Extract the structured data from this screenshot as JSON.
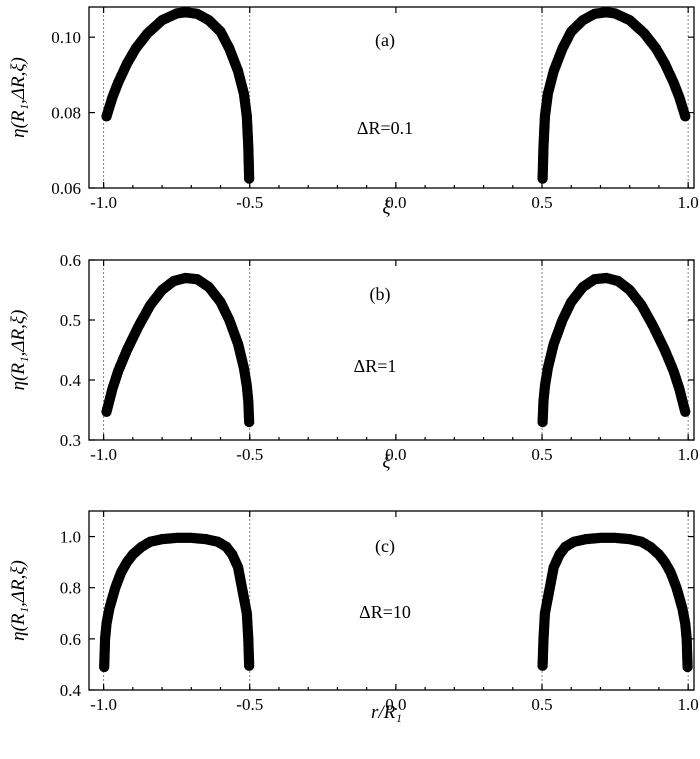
{
  "chart_data": [
    {
      "type": "scatter",
      "panel_label": "(a)",
      "annotation": "ΔR=0.1",
      "ylabel": "η(R₁,ΔR,ξ)",
      "xlabel": "ξ",
      "xlim": [
        -1.05,
        1.02
      ],
      "ylim": [
        0.06,
        0.108
      ],
      "xticks": [
        -1.0,
        -0.5,
        0.0,
        0.5,
        1.0
      ],
      "xtick_labels": [
        "-1.0",
        "-0.5",
        "0.0",
        "0.5",
        "1.0"
      ],
      "yticks": [
        0.06,
        0.08,
        0.1
      ],
      "ytick_labels": [
        "0.06",
        "0.08",
        "0.10"
      ],
      "reference_lines_x": [
        -1.0,
        -0.5,
        0.5,
        1.0
      ],
      "series": [
        {
          "x": [
            -0.99,
            -0.97,
            -0.95,
            -0.92,
            -0.89,
            -0.85,
            -0.8,
            -0.75,
            -0.72,
            -0.68,
            -0.64,
            -0.6,
            -0.57,
            -0.54,
            -0.52,
            -0.51,
            -0.505,
            -0.502
          ],
          "y": [
            0.079,
            0.084,
            0.088,
            0.093,
            0.097,
            0.101,
            0.1045,
            0.1063,
            0.1066,
            0.1062,
            0.1045,
            0.1015,
            0.097,
            0.091,
            0.085,
            0.079,
            0.071,
            0.0625
          ]
        },
        {
          "x": [
            0.502,
            0.505,
            0.51,
            0.52,
            0.54,
            0.57,
            0.6,
            0.64,
            0.68,
            0.72,
            0.75,
            0.8,
            0.85,
            0.89,
            0.92,
            0.95,
            0.97,
            0.99
          ],
          "y": [
            0.0625,
            0.071,
            0.079,
            0.085,
            0.091,
            0.097,
            0.1015,
            0.1045,
            0.1062,
            0.1066,
            0.1063,
            0.1045,
            0.101,
            0.097,
            0.093,
            0.088,
            0.084,
            0.079
          ]
        }
      ]
    },
    {
      "type": "scatter",
      "panel_label": "(b)",
      "annotation": "ΔR=1",
      "ylabel": "η(R₁,ΔR,ξ)",
      "xlabel": "ξ",
      "xlim": [
        -1.05,
        1.02
      ],
      "ylim": [
        0.3,
        0.6
      ],
      "xticks": [
        -1.0,
        -0.5,
        0.0,
        0.5,
        1.0
      ],
      "xtick_labels": [
        "-1.0",
        "-0.5",
        "0.0",
        "0.5",
        "1.0"
      ],
      "yticks": [
        0.3,
        0.4,
        0.5,
        0.6
      ],
      "ytick_labels": [
        "0.3",
        "0.4",
        "0.5",
        "0.6"
      ],
      "reference_lines_x": [
        -1.0,
        -0.5,
        0.5,
        1.0
      ],
      "series": [
        {
          "x": [
            -0.99,
            -0.97,
            -0.95,
            -0.92,
            -0.88,
            -0.84,
            -0.8,
            -0.76,
            -0.72,
            -0.68,
            -0.64,
            -0.6,
            -0.57,
            -0.54,
            -0.52,
            -0.51,
            -0.505,
            -0.502
          ],
          "y": [
            0.347,
            0.385,
            0.415,
            0.45,
            0.49,
            0.525,
            0.55,
            0.565,
            0.57,
            0.568,
            0.555,
            0.53,
            0.5,
            0.46,
            0.42,
            0.39,
            0.365,
            0.33
          ]
        },
        {
          "x": [
            0.502,
            0.505,
            0.51,
            0.52,
            0.54,
            0.57,
            0.6,
            0.64,
            0.68,
            0.72,
            0.76,
            0.8,
            0.84,
            0.88,
            0.92,
            0.95,
            0.97,
            0.99
          ],
          "y": [
            0.33,
            0.365,
            0.39,
            0.42,
            0.46,
            0.5,
            0.53,
            0.555,
            0.568,
            0.57,
            0.565,
            0.55,
            0.525,
            0.49,
            0.45,
            0.415,
            0.385,
            0.347
          ]
        }
      ]
    },
    {
      "type": "scatter",
      "panel_label": "(c)",
      "annotation": "ΔR=10",
      "ylabel": "η(R₁,ΔR,ξ)",
      "xlabel": "r/R₁",
      "xlim": [
        -1.05,
        1.02
      ],
      "ylim": [
        0.4,
        1.1
      ],
      "xticks": [
        -1.0,
        -0.5,
        0.0,
        0.5,
        1.0
      ],
      "xtick_labels": [
        "-1.0",
        "-0.5",
        "0.0",
        "0.5",
        "1.0"
      ],
      "yticks": [
        0.4,
        0.6,
        0.8,
        1.0
      ],
      "ytick_labels": [
        "0.4",
        "0.6",
        "0.8",
        "1.0"
      ],
      "reference_lines_x": [
        -1.0,
        -0.5,
        0.5,
        1.0
      ],
      "series": [
        {
          "x": [
            -0.998,
            -0.995,
            -0.99,
            -0.98,
            -0.96,
            -0.94,
            -0.92,
            -0.9,
            -0.87,
            -0.84,
            -0.8,
            -0.75,
            -0.7,
            -0.65,
            -0.61,
            -0.58,
            -0.56,
            -0.54,
            -0.53,
            -0.52,
            -0.51,
            -0.505,
            -0.502
          ],
          "y": [
            0.49,
            0.6,
            0.66,
            0.72,
            0.8,
            0.86,
            0.9,
            0.93,
            0.96,
            0.98,
            0.99,
            0.995,
            0.995,
            0.99,
            0.98,
            0.96,
            0.93,
            0.88,
            0.82,
            0.76,
            0.7,
            0.6,
            0.495
          ]
        },
        {
          "x": [
            0.502,
            0.505,
            0.51,
            0.52,
            0.53,
            0.54,
            0.56,
            0.58,
            0.61,
            0.65,
            0.7,
            0.75,
            0.8,
            0.84,
            0.87,
            0.9,
            0.92,
            0.94,
            0.96,
            0.98,
            0.99,
            0.995,
            0.998
          ],
          "y": [
            0.495,
            0.6,
            0.7,
            0.76,
            0.82,
            0.88,
            0.93,
            0.96,
            0.98,
            0.99,
            0.995,
            0.995,
            0.99,
            0.98,
            0.96,
            0.93,
            0.9,
            0.86,
            0.8,
            0.72,
            0.66,
            0.6,
            0.49
          ]
        }
      ]
    }
  ]
}
